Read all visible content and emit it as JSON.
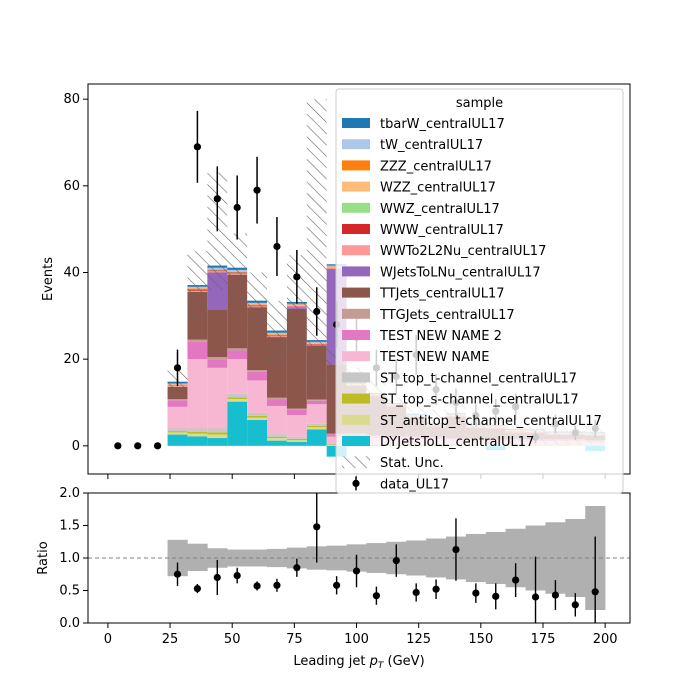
{
  "chart_data": [
    {
      "type": "bar",
      "stacked": true,
      "ylabel": "Events",
      "xlim": [
        -8,
        210
      ],
      "ylim": [
        -6.5,
        83.5
      ],
      "yticks": [
        0,
        20,
        40,
        60,
        80
      ],
      "bin_edges": [
        0,
        8,
        16,
        24,
        32,
        40,
        48,
        56,
        64,
        72,
        80,
        88,
        96,
        104,
        112,
        120,
        128,
        136,
        144,
        152,
        160,
        168,
        176,
        184,
        192,
        200
      ],
      "legend": {
        "title": "sample",
        "placement": "upper right"
      },
      "series": [
        {
          "name": "DYJetsToLL_centralUL17",
          "color": "#17becf",
          "values": [
            0,
            0,
            0,
            2.6,
            2.2,
            1.8,
            10.2,
            6.0,
            1.2,
            0.9,
            3.8,
            -2.5,
            0.3,
            0.2,
            0.2,
            0.2,
            0.2,
            0.1,
            0.1,
            -1.0,
            0.1,
            0.1,
            0.1,
            0.1,
            -1.2
          ]
        },
        {
          "name": "ST_antitop_t-channel_centralUL17",
          "color": "#dbdb8d",
          "values": [
            0,
            0,
            0,
            0.5,
            0.6,
            0.8,
            0.6,
            0.5,
            0.6,
            0.4,
            0.5,
            0.2,
            0.1,
            0.1,
            0.1,
            0.1,
            0.1,
            0.1,
            0.1,
            0.1,
            0.1,
            0.1,
            0.1,
            0.1,
            0.1
          ]
        },
        {
          "name": "ST_top_s-channel_centralUL17",
          "color": "#bcbd22",
          "values": [
            0,
            0,
            0,
            0.3,
            0.4,
            0.5,
            0.4,
            0.4,
            0.3,
            0.3,
            0.3,
            0.1,
            0.1,
            0.1,
            0.1,
            0.1,
            0.1,
            0.1,
            0.1,
            0.1,
            0.1,
            0.1,
            0.1,
            0.1,
            0.1
          ]
        },
        {
          "name": "ST_top_t-channel_centralUL17",
          "color": "#c7c7c7",
          "values": [
            0,
            0,
            0,
            0.6,
            0.8,
            0.9,
            0.8,
            0.7,
            0.6,
            0.5,
            0.5,
            0.3,
            0.2,
            0.2,
            0.2,
            0.2,
            0.2,
            0.2,
            0.2,
            0.2,
            0.2,
            0.2,
            0.2,
            0.2,
            0.2
          ]
        },
        {
          "name": "TEST NEW NAME",
          "color": "#f7b6d2",
          "values": [
            0,
            0,
            0,
            5.0,
            16.0,
            14.0,
            8.0,
            7.5,
            6.5,
            5.0,
            4.5,
            1.5,
            1.5,
            1.2,
            1.0,
            1.0,
            0.9,
            0.8,
            0.8,
            0.7,
            0.7,
            0.6,
            0.6,
            0.6,
            0.5
          ]
        },
        {
          "name": "TEST NEW NAME 2",
          "color": "#e377c2",
          "values": [
            0,
            0,
            0,
            1.5,
            4.0,
            2.0,
            2.0,
            2.0,
            1.5,
            1.2,
            0.8,
            0.5,
            0.4,
            0.4,
            0.3,
            0.3,
            0.3,
            0.2,
            0.2,
            0.2,
            0.2,
            0.2,
            0.2,
            0.2,
            0.2
          ]
        },
        {
          "name": "TTGJets_centralUL17",
          "color": "#c49c94",
          "values": [
            0,
            0,
            0,
            0.3,
            0.5,
            0.5,
            0.5,
            0.4,
            0.4,
            0.3,
            0.3,
            0.2,
            0.2,
            0.2,
            0.2,
            0.2,
            0.2,
            0.2,
            0.2,
            0.2,
            0.2,
            0.2,
            0.2,
            0.2,
            0.2
          ]
        },
        {
          "name": "TTJets_centralUL17",
          "color": "#8c564b",
          "values": [
            0,
            0,
            0,
            2.8,
            11.0,
            11.0,
            17.0,
            14.5,
            14.0,
            23.0,
            12.5,
            16.0,
            11.0,
            9.0,
            7.0,
            4.5,
            2.5,
            5.0,
            2.5,
            2.5,
            1.5,
            1.5,
            1.0,
            1.0,
            1.0
          ]
        },
        {
          "name": "WJetsToLNu_centralUL17",
          "color": "#9467bd",
          "values": [
            0,
            0,
            0,
            0,
            0,
            8.5,
            0,
            0,
            0,
            0.4,
            0,
            22.0,
            0,
            0,
            0,
            0,
            0,
            0,
            0,
            0,
            0,
            0,
            0,
            0,
            0
          ]
        },
        {
          "name": "WWTo2L2Nu_centralUL17",
          "color": "#ff9896",
          "values": [
            0,
            0,
            0,
            0.2,
            0.3,
            0.3,
            0.3,
            0.2,
            0.2,
            0.2,
            0.2,
            0.2,
            0.1,
            0.1,
            0.1,
            0.1,
            0.1,
            0.1,
            0.1,
            0.1,
            0.1,
            0.1,
            0.1,
            0.1,
            0.1
          ]
        },
        {
          "name": "WWW_centralUL17",
          "color": "#d62728",
          "values": [
            0,
            0,
            0,
            0.1,
            0.3,
            0.2,
            0.2,
            0.2,
            0.2,
            0.1,
            0.1,
            0.1,
            0.1,
            0.1,
            0.1,
            0.1,
            0.1,
            0.1,
            0.1,
            0.1,
            0.1,
            0.1,
            0.1,
            0.1,
            0.1
          ]
        },
        {
          "name": "WWZ_centralUL17",
          "color": "#98df8a",
          "values": [
            0,
            0,
            0,
            0.1,
            0.1,
            0.1,
            0.1,
            0.1,
            0.1,
            0.1,
            0.1,
            0.1,
            0.1,
            0.1,
            0.1,
            0.1,
            0.1,
            0.1,
            0.1,
            0.1,
            0.1,
            0.1,
            0.1,
            0.1,
            0.1
          ]
        },
        {
          "name": "WZZ_centralUL17",
          "color": "#ffbb78",
          "values": [
            0,
            0,
            0,
            0.1,
            0.1,
            0.1,
            0.1,
            0.1,
            0.1,
            0.1,
            0.1,
            0.1,
            0.1,
            0.1,
            0.1,
            0.1,
            0.1,
            0.1,
            0.1,
            0.1,
            0.1,
            0.1,
            0.1,
            0.1,
            0.1
          ]
        },
        {
          "name": "ZZZ_centralUL17",
          "color": "#ff7f0e",
          "values": [
            0,
            0,
            0,
            0.1,
            0.1,
            0.1,
            0.1,
            0.1,
            0.1,
            0.1,
            0.1,
            0.1,
            0.1,
            0.1,
            0.1,
            0.1,
            0.1,
            0.1,
            0.1,
            0.1,
            0.1,
            0.1,
            0.1,
            0.1,
            0.1
          ]
        },
        {
          "name": "tW_centralUL17",
          "color": "#aec7e8",
          "values": [
            0,
            0,
            0,
            0.2,
            0.3,
            0.3,
            0.3,
            0.3,
            0.3,
            0.2,
            0.2,
            0.2,
            0.1,
            0.1,
            0.1,
            0.1,
            0.1,
            0.1,
            0.1,
            0.1,
            0.1,
            0.1,
            0.1,
            0.1,
            0.1
          ]
        },
        {
          "name": "tbarW_centralUL17",
          "color": "#1f77b4",
          "values": [
            0,
            0,
            0,
            0.4,
            0.4,
            0.5,
            0.5,
            0.5,
            0.5,
            0.4,
            0.4,
            0.3,
            0.2,
            0.2,
            0.2,
            0.2,
            0.2,
            0.2,
            0.2,
            0.2,
            0.2,
            0.2,
            0.2,
            0.2,
            0.2
          ]
        }
      ],
      "stat_unc": {
        "name": "Stat. Unc.",
        "color": "#666666",
        "up": [
          0,
          0,
          0,
          18.0,
          45.0,
          63.0,
          49.0,
          40.0,
          33.5,
          44.0,
          80.0,
          23.0,
          18.0,
          15.0,
          12.0,
          10.0,
          8.5,
          10.0,
          7.0,
          7.0,
          5.5,
          5.0,
          5.0,
          5.0,
          5.0
        ],
        "down": [
          0,
          0,
          0,
          11.0,
          29.0,
          36.0,
          33.0,
          26.5,
          19.0,
          22.0,
          12.0,
          14.0,
          8.0,
          6.0,
          4.0,
          2.5,
          1.5,
          3.0,
          1.0,
          0.5,
          0.3,
          0.3,
          0.3,
          0.3,
          0.3
        ]
      },
      "data": {
        "name": "data_UL17",
        "color": "#000000",
        "x": [
          4,
          12,
          20,
          28,
          36,
          44,
          52,
          60,
          68,
          76,
          84,
          92,
          100,
          108,
          116,
          124,
          132,
          140,
          148,
          156,
          164,
          172,
          180,
          188,
          196
        ],
        "y": [
          0,
          0,
          0,
          18,
          69,
          57,
          55,
          59,
          46,
          39,
          31,
          28,
          25,
          18,
          16,
          21,
          13,
          10,
          7,
          8,
          9,
          2,
          5,
          3,
          4
        ],
        "yerr": [
          0,
          0,
          0,
          4.2,
          8.3,
          7.5,
          7.4,
          7.7,
          6.8,
          6.2,
          5.6,
          5.3,
          5.0,
          4.2,
          4.0,
          4.6,
          3.6,
          3.2,
          2.6,
          2.8,
          3.0,
          1.4,
          2.2,
          1.7,
          2.0
        ]
      }
    },
    {
      "type": "scatter",
      "xlabel": "Leading jet  $p_T$ (GeV)",
      "ylabel": "Ratio",
      "xlim": [
        -8,
        210
      ],
      "ylim": [
        0,
        2
      ],
      "xticks": [
        0,
        25,
        50,
        75,
        100,
        125,
        150,
        175,
        200
      ],
      "yticks": [
        0.0,
        0.5,
        1.0,
        1.5,
        2.0
      ],
      "reference_line": 1.0,
      "bin_edges": [
        24,
        32,
        40,
        48,
        56,
        64,
        72,
        80,
        88,
        96,
        104,
        112,
        120,
        128,
        136,
        144,
        152,
        160,
        168,
        176,
        184,
        192,
        200
      ],
      "unc_band": {
        "color": "#b0b0b0",
        "up": [
          1.28,
          1.22,
          1.15,
          1.13,
          1.13,
          1.14,
          1.16,
          1.18,
          1.19,
          1.21,
          1.23,
          1.25,
          1.27,
          1.3,
          1.33,
          1.37,
          1.4,
          1.45,
          1.5,
          1.55,
          1.6,
          1.8
        ],
        "down": [
          0.72,
          0.8,
          0.85,
          0.87,
          0.87,
          0.86,
          0.84,
          0.82,
          0.81,
          0.79,
          0.77,
          0.75,
          0.73,
          0.7,
          0.67,
          0.63,
          0.6,
          0.55,
          0.5,
          0.45,
          0.4,
          0.2
        ]
      },
      "points": {
        "color": "#000000",
        "x": [
          28,
          36,
          44,
          52,
          60,
          68,
          76,
          84,
          92,
          100,
          108,
          116,
          124,
          132,
          140,
          148,
          156,
          164,
          172,
          180,
          188,
          196
        ],
        "y": [
          0.75,
          0.53,
          0.7,
          0.73,
          0.57,
          0.58,
          0.85,
          1.48,
          0.58,
          0.8,
          0.42,
          0.96,
          0.47,
          0.52,
          1.13,
          0.46,
          0.41,
          0.66,
          0.4,
          0.43,
          0.28,
          0.48
        ],
        "yerr": [
          0.18,
          0.07,
          0.27,
          0.12,
          0.07,
          0.1,
          0.14,
          0.55,
          0.14,
          0.25,
          0.14,
          0.25,
          0.14,
          0.15,
          0.48,
          0.15,
          0.2,
          0.26,
          0.62,
          0.23,
          0.18,
          0.85
        ]
      }
    }
  ]
}
